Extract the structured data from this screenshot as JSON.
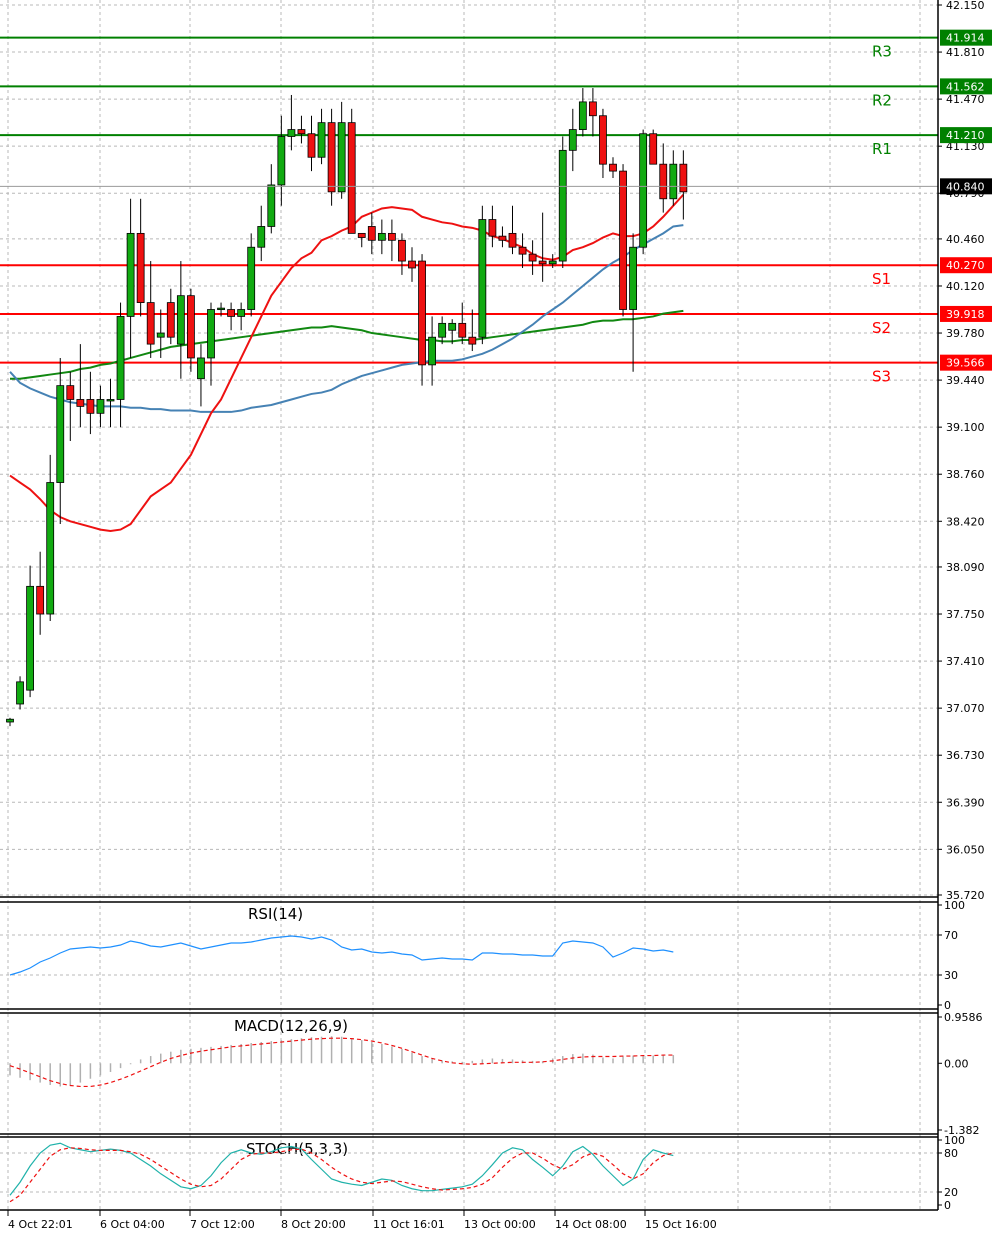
{
  "chart_data": {
    "type": "candlestick",
    "instrument_note": "",
    "price_axis": {
      "ylim": [
        35.72,
        42.15
      ],
      "tick_labels": [
        "42.150",
        "41.810",
        "41.470",
        "41.130",
        "40.790",
        "40.460",
        "40.120",
        "39.780",
        "39.440",
        "39.100",
        "38.760",
        "38.420",
        "38.090",
        "37.750",
        "37.410",
        "37.070",
        "36.730",
        "36.390",
        "36.050",
        "35.720"
      ],
      "current_price": "40.840"
    },
    "x_labels": [
      "4 Oct 22:01",
      "6 Oct 04:00",
      "7 Oct 12:00",
      "8 Oct 20:00",
      "11 Oct 16:01",
      "13 Oct 00:00",
      "14 Oct 08:00",
      "15 Oct 16:00"
    ],
    "levels": [
      {
        "name": "R3",
        "value": 41.914,
        "label": "41.914",
        "color": "#008000"
      },
      {
        "name": "R2",
        "value": 41.562,
        "label": "41.562",
        "color": "#008000"
      },
      {
        "name": "R1",
        "value": 41.21,
        "label": "41.210",
        "color": "#008000"
      },
      {
        "name": "S1",
        "value": 40.27,
        "label": "40.270",
        "color": "#ff0000"
      },
      {
        "name": "S2",
        "value": 39.918,
        "label": "39.918",
        "color": "#ff0000"
      },
      {
        "name": "S3",
        "value": 39.566,
        "label": "39.566",
        "color": "#ff0000"
      }
    ],
    "candles": [
      {
        "o": 36.97,
        "h": 37.0,
        "l": 36.94,
        "c": 36.99
      },
      {
        "o": 37.1,
        "h": 37.3,
        "l": 37.06,
        "c": 37.26
      },
      {
        "o": 37.2,
        "h": 38.1,
        "l": 37.15,
        "c": 37.95
      },
      {
        "o": 37.95,
        "h": 38.2,
        "l": 37.6,
        "c": 37.75
      },
      {
        "o": 37.75,
        "h": 38.9,
        "l": 37.7,
        "c": 38.7
      },
      {
        "o": 38.7,
        "h": 39.6,
        "l": 38.4,
        "c": 39.4
      },
      {
        "o": 39.4,
        "h": 39.5,
        "l": 39.0,
        "c": 39.3
      },
      {
        "o": 39.3,
        "h": 39.7,
        "l": 39.1,
        "c": 39.25
      },
      {
        "o": 39.3,
        "h": 39.5,
        "l": 39.05,
        "c": 39.2
      },
      {
        "o": 39.2,
        "h": 39.4,
        "l": 39.1,
        "c": 39.3
      },
      {
        "o": 39.3,
        "h": 39.45,
        "l": 39.1,
        "c": 39.3
      },
      {
        "o": 39.3,
        "h": 40.0,
        "l": 39.1,
        "c": 39.9
      },
      {
        "o": 39.9,
        "h": 40.75,
        "l": 39.6,
        "c": 40.5
      },
      {
        "o": 40.5,
        "h": 40.75,
        "l": 39.9,
        "c": 40.0
      },
      {
        "o": 40.0,
        "h": 40.3,
        "l": 39.6,
        "c": 39.7
      },
      {
        "o": 39.75,
        "h": 39.95,
        "l": 39.6,
        "c": 39.78
      },
      {
        "o": 40.0,
        "h": 40.1,
        "l": 39.7,
        "c": 39.75
      },
      {
        "o": 39.7,
        "h": 40.3,
        "l": 39.45,
        "c": 40.05
      },
      {
        "o": 40.05,
        "h": 40.1,
        "l": 39.5,
        "c": 39.6
      },
      {
        "o": 39.45,
        "h": 39.7,
        "l": 39.25,
        "c": 39.6
      },
      {
        "o": 39.6,
        "h": 40.0,
        "l": 39.4,
        "c": 39.95
      },
      {
        "o": 39.95,
        "h": 40.0,
        "l": 39.9,
        "c": 39.96
      },
      {
        "o": 39.95,
        "h": 40.0,
        "l": 39.8,
        "c": 39.9
      },
      {
        "o": 39.9,
        "h": 40.0,
        "l": 39.8,
        "c": 39.95
      },
      {
        "o": 39.95,
        "h": 40.5,
        "l": 39.9,
        "c": 40.4
      },
      {
        "o": 40.4,
        "h": 40.7,
        "l": 40.3,
        "c": 40.55
      },
      {
        "o": 40.55,
        "h": 41.0,
        "l": 40.5,
        "c": 40.85
      },
      {
        "o": 40.85,
        "h": 41.35,
        "l": 40.7,
        "c": 41.2
      },
      {
        "o": 41.2,
        "h": 41.5,
        "l": 41.1,
        "c": 41.25
      },
      {
        "o": 41.25,
        "h": 41.35,
        "l": 41.15,
        "c": 41.22
      },
      {
        "o": 41.22,
        "h": 41.35,
        "l": 40.95,
        "c": 41.05
      },
      {
        "o": 41.05,
        "h": 41.4,
        "l": 41.0,
        "c": 41.3
      },
      {
        "o": 41.3,
        "h": 41.4,
        "l": 40.7,
        "c": 40.8
      },
      {
        "o": 40.8,
        "h": 41.45,
        "l": 40.75,
        "c": 41.3
      },
      {
        "o": 41.3,
        "h": 41.4,
        "l": 40.5,
        "c": 40.5
      },
      {
        "o": 40.5,
        "h": 40.5,
        "l": 40.4,
        "c": 40.47
      },
      {
        "o": 40.55,
        "h": 40.65,
        "l": 40.35,
        "c": 40.45
      },
      {
        "o": 40.45,
        "h": 40.6,
        "l": 40.35,
        "c": 40.5
      },
      {
        "o": 40.5,
        "h": 40.6,
        "l": 40.3,
        "c": 40.45
      },
      {
        "o": 40.45,
        "h": 40.5,
        "l": 40.2,
        "c": 40.3
      },
      {
        "o": 40.3,
        "h": 40.4,
        "l": 40.15,
        "c": 40.25
      },
      {
        "o": 40.3,
        "h": 40.35,
        "l": 39.4,
        "c": 39.55
      },
      {
        "o": 39.55,
        "h": 39.9,
        "l": 39.4,
        "c": 39.75
      },
      {
        "o": 39.75,
        "h": 39.9,
        "l": 39.7,
        "c": 39.85
      },
      {
        "o": 39.8,
        "h": 39.88,
        "l": 39.7,
        "c": 39.85
      },
      {
        "o": 39.85,
        "h": 40.0,
        "l": 39.7,
        "c": 39.75
      },
      {
        "o": 39.75,
        "h": 39.95,
        "l": 39.65,
        "c": 39.7
      },
      {
        "o": 39.75,
        "h": 40.7,
        "l": 39.7,
        "c": 40.6
      },
      {
        "o": 40.6,
        "h": 40.7,
        "l": 40.4,
        "c": 40.48
      },
      {
        "o": 40.48,
        "h": 40.55,
        "l": 40.4,
        "c": 40.45
      },
      {
        "o": 40.5,
        "h": 40.7,
        "l": 40.35,
        "c": 40.4
      },
      {
        "o": 40.4,
        "h": 40.5,
        "l": 40.25,
        "c": 40.35
      },
      {
        "o": 40.35,
        "h": 40.45,
        "l": 40.2,
        "c": 40.3
      },
      {
        "o": 40.3,
        "h": 40.65,
        "l": 40.15,
        "c": 40.28
      },
      {
        "o": 40.28,
        "h": 40.35,
        "l": 40.25,
        "c": 40.3
      },
      {
        "o": 40.3,
        "h": 41.2,
        "l": 40.25,
        "c": 41.1
      },
      {
        "o": 41.1,
        "h": 41.4,
        "l": 40.95,
        "c": 41.25
      },
      {
        "o": 41.25,
        "h": 41.55,
        "l": 41.2,
        "c": 41.45
      },
      {
        "o": 41.45,
        "h": 41.55,
        "l": 41.2,
        "c": 41.35
      },
      {
        "o": 41.35,
        "h": 41.4,
        "l": 40.9,
        "c": 41.0
      },
      {
        "o": 41.0,
        "h": 41.05,
        "l": 40.9,
        "c": 40.95
      },
      {
        "o": 40.95,
        "h": 41.0,
        "l": 39.9,
        "c": 39.95
      },
      {
        "o": 39.95,
        "h": 40.5,
        "l": 39.5,
        "c": 40.4
      },
      {
        "o": 40.4,
        "h": 41.25,
        "l": 40.35,
        "c": 41.22
      },
      {
        "o": 41.22,
        "h": 41.25,
        "l": 41.0,
        "c": 41.0
      },
      {
        "o": 41.0,
        "h": 41.15,
        "l": 40.65,
        "c": 40.75
      },
      {
        "o": 40.75,
        "h": 41.1,
        "l": 40.7,
        "c": 41.0
      },
      {
        "o": 41.0,
        "h": 41.1,
        "l": 40.6,
        "c": 40.8
      }
    ],
    "ma_red": [
      38.75,
      38.7,
      38.65,
      38.58,
      38.5,
      38.45,
      38.42,
      38.4,
      38.38,
      38.36,
      38.35,
      38.36,
      38.4,
      38.5,
      38.6,
      38.65,
      38.7,
      38.8,
      38.9,
      39.05,
      39.2,
      39.3,
      39.45,
      39.6,
      39.75,
      39.9,
      40.05,
      40.15,
      40.25,
      40.32,
      40.36,
      40.45,
      40.48,
      40.52,
      40.55,
      40.62,
      40.65,
      40.68,
      40.69,
      40.68,
      40.67,
      40.62,
      40.6,
      40.58,
      40.57,
      40.55,
      40.54,
      40.52,
      40.48,
      40.46,
      40.43,
      40.4,
      40.35,
      40.32,
      40.31,
      40.33,
      40.38,
      40.4,
      40.43,
      40.47,
      40.5,
      40.48,
      40.48,
      40.5,
      40.55,
      40.62,
      40.7,
      40.78
    ],
    "ma_blue": [
      39.5,
      39.42,
      39.38,
      39.35,
      39.32,
      39.3,
      39.28,
      39.27,
      39.26,
      39.25,
      39.25,
      39.25,
      39.24,
      39.24,
      39.23,
      39.23,
      39.22,
      39.22,
      39.22,
      39.21,
      39.21,
      39.21,
      39.21,
      39.22,
      39.24,
      39.25,
      39.26,
      39.28,
      39.3,
      39.32,
      39.34,
      39.35,
      39.37,
      39.41,
      39.44,
      39.47,
      39.49,
      39.51,
      39.53,
      39.55,
      39.56,
      39.57,
      39.58,
      39.58,
      39.58,
      39.59,
      39.61,
      39.63,
      39.66,
      39.7,
      39.74,
      39.79,
      39.84,
      39.9,
      39.95,
      40.0,
      40.06,
      40.12,
      40.18,
      40.24,
      40.29,
      40.33,
      40.38,
      40.42,
      40.46,
      40.5,
      40.55,
      40.56
    ],
    "ma_green": [
      39.45,
      39.45,
      39.46,
      39.47,
      39.48,
      39.49,
      39.5,
      39.52,
      39.53,
      39.55,
      39.56,
      39.58,
      39.6,
      39.62,
      39.64,
      39.66,
      39.68,
      39.69,
      39.7,
      39.71,
      39.72,
      39.73,
      39.74,
      39.75,
      39.76,
      39.77,
      39.78,
      39.79,
      39.8,
      39.81,
      39.82,
      39.82,
      39.83,
      39.82,
      39.81,
      39.8,
      39.78,
      39.77,
      39.76,
      39.75,
      39.74,
      39.73,
      39.73,
      39.72,
      39.72,
      39.73,
      39.73,
      39.74,
      39.75,
      39.76,
      39.77,
      39.78,
      39.79,
      39.8,
      39.81,
      39.82,
      39.83,
      39.84,
      39.86,
      39.87,
      39.87,
      39.88,
      39.88,
      39.89,
      39.9,
      39.92,
      39.93,
      39.94
    ],
    "rsi": {
      "name": "RSI(14)",
      "ylim": [
        0,
        100
      ],
      "tick_labels": [
        "100",
        "70",
        "30",
        "0"
      ],
      "values": [
        30,
        33,
        37,
        43,
        47,
        52,
        56,
        57,
        58,
        57,
        58,
        60,
        64,
        62,
        59,
        58,
        60,
        62,
        59,
        56,
        58,
        60,
        62,
        62,
        63,
        65,
        67,
        68,
        69,
        68,
        66,
        68,
        65,
        58,
        55,
        56,
        53,
        52,
        53,
        51,
        50,
        45,
        46,
        47,
        46,
        46,
        45,
        52,
        52,
        51,
        51,
        50,
        50,
        49,
        49,
        62,
        64,
        63,
        62,
        58,
        48,
        52,
        57,
        56,
        54,
        55,
        53
      ]
    },
    "macd": {
      "name": "MACD(12,26,9)",
      "ylim": [
        -1.382,
        0.9586
      ],
      "tick_labels": [
        "0.9586",
        "0.00",
        "-1.382"
      ],
      "histogram": [
        -0.25,
        -0.3,
        -0.35,
        -0.4,
        -0.45,
        -0.48,
        -0.45,
        -0.4,
        -0.32,
        -0.25,
        -0.18,
        -0.1,
        -0.02,
        0.08,
        0.15,
        0.2,
        0.24,
        0.28,
        0.3,
        0.32,
        0.34,
        0.36,
        0.38,
        0.4,
        0.42,
        0.44,
        0.46,
        0.48,
        0.5,
        0.52,
        0.54,
        0.55,
        0.56,
        0.55,
        0.52,
        0.48,
        0.44,
        0.4,
        0.35,
        0.3,
        0.22,
        0.15,
        0.1,
        0.06,
        0.04,
        0.03,
        0.05,
        0.08,
        0.1,
        0.09,
        0.08,
        0.06,
        0.05,
        0.04,
        0.1,
        0.15,
        0.19,
        0.2,
        0.18,
        0.12,
        0.1,
        0.14,
        0.16,
        0.16,
        0.16,
        0.17,
        0.17
      ],
      "signal": [
        -0.05,
        -0.12,
        -0.2,
        -0.28,
        -0.36,
        -0.42,
        -0.46,
        -0.48,
        -0.48,
        -0.45,
        -0.4,
        -0.33,
        -0.25,
        -0.16,
        -0.07,
        0.02,
        0.1,
        0.16,
        0.21,
        0.25,
        0.28,
        0.31,
        0.34,
        0.36,
        0.38,
        0.4,
        0.42,
        0.44,
        0.46,
        0.48,
        0.5,
        0.51,
        0.52,
        0.52,
        0.51,
        0.49,
        0.46,
        0.42,
        0.37,
        0.31,
        0.24,
        0.17,
        0.1,
        0.05,
        0.01,
        -0.01,
        -0.02,
        -0.01,
        0.0,
        0.01,
        0.02,
        0.02,
        0.02,
        0.03,
        0.05,
        0.08,
        0.11,
        0.13,
        0.14,
        0.14,
        0.14,
        0.15,
        0.15,
        0.16,
        0.16,
        0.17,
        0.17
      ]
    },
    "stoch": {
      "name": "STOCH(5,3,3)",
      "ylim": [
        0,
        100
      ],
      "tick_labels": [
        "100",
        "80",
        "20",
        "0"
      ],
      "main": [
        15,
        35,
        60,
        80,
        92,
        95,
        88,
        85,
        82,
        84,
        86,
        84,
        80,
        70,
        60,
        48,
        38,
        28,
        25,
        30,
        45,
        65,
        80,
        85,
        80,
        78,
        82,
        88,
        90,
        86,
        70,
        55,
        40,
        35,
        32,
        30,
        35,
        40,
        38,
        30,
        25,
        22,
        22,
        24,
        26,
        28,
        32,
        45,
        62,
        80,
        88,
        85,
        70,
        58,
        45,
        60,
        82,
        90,
        78,
        60,
        45,
        30,
        40,
        70,
        85,
        80,
        76
      ],
      "signal": [
        5,
        15,
        35,
        55,
        75,
        85,
        88,
        87,
        85,
        84,
        84,
        84,
        82,
        78,
        70,
        60,
        50,
        40,
        32,
        28,
        30,
        40,
        55,
        70,
        78,
        80,
        80,
        82,
        85,
        86,
        80,
        70,
        58,
        48,
        40,
        35,
        33,
        35,
        37,
        36,
        32,
        28,
        25,
        23,
        24,
        25,
        27,
        32,
        42,
        58,
        72,
        80,
        80,
        72,
        62,
        55,
        62,
        74,
        80,
        75,
        62,
        48,
        40,
        48,
        65,
        76,
        80
      ]
    }
  }
}
